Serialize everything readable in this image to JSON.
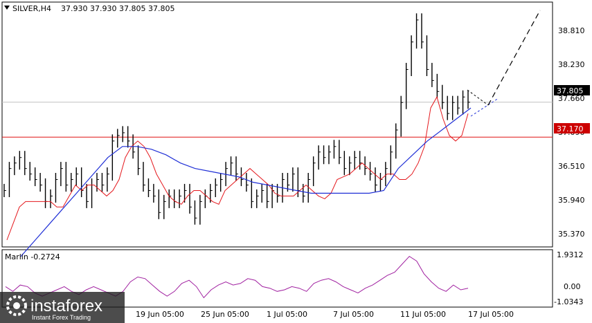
{
  "header": {
    "symbol": "SILVER,H4",
    "quote": "37.930 37.930 37.805 37.805",
    "menu_icon": "triangle-down-icon"
  },
  "price_axis": {
    "ticks": [
      "38.810",
      "38.230",
      "37.660",
      "37.090",
      "36.510",
      "35.940",
      "35.370"
    ],
    "current_price_label": "37.805",
    "level_label": "37.170"
  },
  "indicator": {
    "name": "Marlin -0.2724",
    "ticks": [
      "1.9312",
      "0.00",
      "-1.0343"
    ]
  },
  "time_axis": {
    "labels": [
      "19 Jun 05:00",
      "25 Jun 05:00",
      "1 Jul 05:00",
      "7 Jul 05:00",
      "11 Jul 05:00",
      "17 Jul 05:00"
    ]
  },
  "watermark": {
    "brand": "instaforex",
    "tagline": "Instant Forex Trading"
  },
  "colors": {
    "price_bar": "#000000",
    "fast_ma": "#e4171c",
    "slow_ma": "#1f2fd6",
    "level_line": "#e01010",
    "indicator_line": "#a020a0",
    "forecast": "#000000",
    "current_price_line": "#c0c0c0",
    "label_red": "#cc0000"
  },
  "chart_data": {
    "type": "line",
    "y_range": [
      35.2,
      39.6
    ],
    "indicator_range": [
      -1.2,
      2.1
    ],
    "level": 37.17,
    "current_price": 37.805,
    "series": [
      {
        "values": [
          36.2,
          36.6,
          36.7,
          36.8,
          36.6,
          36.5,
          36.4,
          36.3,
          36.0,
          36.1,
          36.4,
          36.6,
          36.3,
          36.4,
          36.5,
          36.2,
          36.0,
          36.3,
          36.4,
          36.3,
          36.5,
          37.1,
          37.2,
          37.25,
          37.1,
          36.9,
          36.6,
          36.3,
          36.2,
          36.1,
          35.8,
          36.0,
          36.1,
          36.0,
          36.1,
          36.2,
          35.9,
          35.7,
          36.0,
          36.1,
          36.2,
          36.3,
          36.4,
          36.6,
          36.7,
          36.5,
          36.4,
          36.3,
          36.0,
          36.1,
          36.2,
          36.0,
          36.2,
          36.1,
          36.4,
          36.3,
          36.5,
          36.2,
          36.1,
          36.4,
          36.7,
          36.9,
          36.8,
          36.9,
          37.0,
          36.8,
          36.6,
          36.7,
          36.8,
          36.7,
          36.6,
          36.5,
          36.3,
          36.4,
          36.6,
          36.9,
          37.3,
          37.8,
          38.4,
          38.9,
          39.3,
          38.9,
          38.4,
          38.2,
          38.0,
          37.8,
          37.6,
          37.8,
          37.7,
          37.9,
          37.805
        ]
      },
      {
        "values": [
          35.3,
          35.6,
          35.9,
          36.0,
          36.0,
          36.0,
          36.0,
          36.0,
          35.9,
          35.9,
          36.1,
          36.3,
          36.2,
          36.3,
          36.3,
          36.2,
          36.1,
          36.2,
          36.4,
          36.8,
          37.0,
          37.1,
          37.0,
          36.8,
          36.5,
          36.3,
          36.1,
          36.0,
          35.95,
          36.1,
          36.2,
          36.2,
          36.1,
          36.0,
          35.95,
          36.2,
          36.3,
          36.4,
          36.5,
          36.6,
          36.5,
          36.4,
          36.3,
          36.15,
          36.1,
          36.1,
          36.1,
          36.2,
          36.3,
          36.2,
          36.1,
          36.05,
          36.15,
          36.4,
          36.45,
          36.5,
          36.6,
          36.7,
          36.6,
          36.5,
          36.4,
          36.5,
          36.5,
          36.4,
          36.4,
          36.5,
          36.7,
          37.0,
          37.7,
          37.9,
          37.5,
          37.2,
          37.1,
          37.2,
          37.6
        ]
      },
      {
        "values": [
          35.0,
          35.3,
          35.6,
          35.9,
          36.2,
          36.5,
          36.8,
          37.0,
          37.0,
          36.95,
          36.85,
          36.7,
          36.6,
          36.55,
          36.5,
          36.45,
          36.35,
          36.3,
          36.25,
          36.2,
          36.15,
          36.15,
          36.15,
          36.15,
          36.15,
          36.2,
          36.6,
          36.85,
          37.1,
          37.3,
          37.5,
          37.7
        ]
      },
      {
        "values": [
          0.0,
          -0.3,
          0.1,
          0.0,
          -0.4,
          -0.6,
          -0.4,
          -0.2,
          0.0,
          -0.3,
          -0.5,
          -0.2,
          0.0,
          -0.2,
          -0.4,
          -0.6,
          -0.3,
          0.3,
          0.6,
          0.5,
          0.1,
          -0.3,
          -0.6,
          -0.3,
          0.2,
          0.4,
          0.0,
          -0.7,
          -0.2,
          0.1,
          0.3,
          0.1,
          0.2,
          0.5,
          0.4,
          0.0,
          -0.1,
          -0.3,
          -0.2,
          0.0,
          -0.1,
          -0.3,
          0.2,
          0.4,
          0.5,
          0.3,
          0.0,
          -0.2,
          -0.4,
          -0.1,
          0.1,
          0.4,
          0.7,
          0.9,
          1.4,
          1.9,
          1.6,
          0.8,
          0.3,
          -0.1,
          -0.3,
          0.1,
          -0.2,
          -0.1
        ]
      }
    ]
  }
}
